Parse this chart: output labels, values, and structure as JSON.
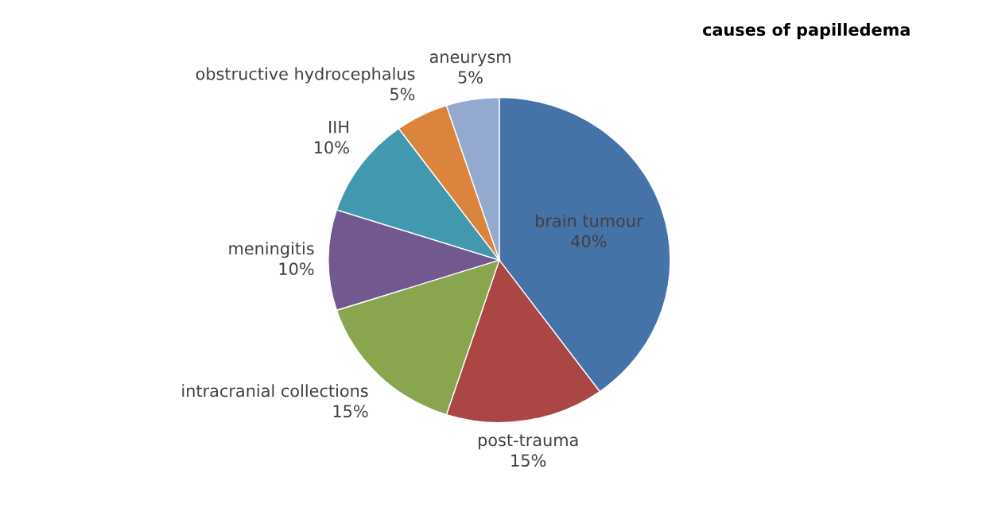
{
  "chart_data": {
    "type": "pie",
    "title": "causes of papilledema",
    "categories": [
      "brain tumour",
      "post-trauma",
      "intracranial collections",
      "meningitis",
      "IIH",
      "obstructive hydrocephalus",
      "aneurysm"
    ],
    "values": [
      40,
      15,
      15,
      10,
      10,
      5,
      5
    ],
    "value_labels": [
      "40%",
      "15%",
      "15%",
      "10%",
      "10%",
      "5%",
      "5%"
    ],
    "colors": [
      "#4572a7",
      "#aa4643",
      "#89a54e",
      "#71588f",
      "#4198af",
      "#db843d",
      "#93a9cf"
    ],
    "legend": false
  }
}
